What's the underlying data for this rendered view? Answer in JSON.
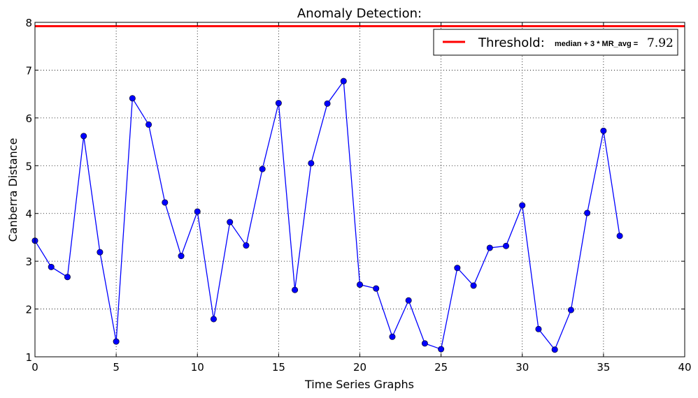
{
  "chart_data": {
    "type": "line",
    "title": "Anomaly Detection:",
    "xlabel": "Time Series Graphs",
    "ylabel": "Canberra Distance",
    "xlim": [
      0,
      40
    ],
    "ylim": [
      1,
      8
    ],
    "xticks": [
      0,
      5,
      10,
      15,
      20,
      25,
      30,
      35,
      40
    ],
    "yticks": [
      1,
      2,
      3,
      4,
      5,
      6,
      7,
      8
    ],
    "grid": true,
    "legend_position": "top-right",
    "series": [
      {
        "color": "#0000ff",
        "marker": "circle",
        "x": [
          0,
          1,
          2,
          3,
          4,
          5,
          6,
          7,
          8,
          9,
          10,
          11,
          12,
          13,
          14,
          15,
          16,
          17,
          18,
          19,
          20,
          21,
          22,
          23,
          24,
          25,
          26,
          27,
          28,
          29,
          30,
          31,
          32,
          33,
          34,
          35,
          36
        ],
        "y": [
          3.43,
          2.88,
          2.67,
          5.62,
          3.19,
          1.32,
          6.41,
          5.86,
          4.23,
          3.11,
          4.04,
          1.79,
          3.82,
          3.33,
          4.93,
          6.31,
          2.4,
          5.05,
          6.3,
          6.77,
          2.51,
          2.43,
          1.42,
          2.18,
          1.28,
          1.16,
          2.86,
          2.49,
          3.28,
          3.32,
          4.17,
          1.58,
          1.15,
          1.98,
          4.01,
          5.73,
          3.53
        ]
      }
    ],
    "threshold": {
      "value": 7.92,
      "color": "#ff0000",
      "legend_label": "Threshold:",
      "legend_formula": "median + 3 * MR_avg =",
      "legend_value": "7.92"
    }
  }
}
